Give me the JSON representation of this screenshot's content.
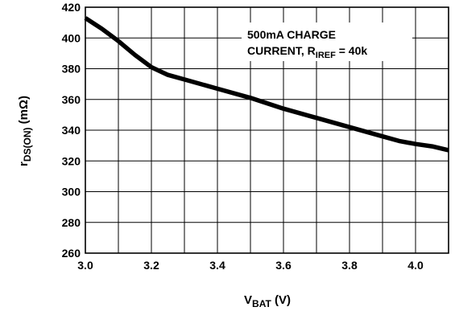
{
  "chart_data": {
    "type": "line",
    "xlabel": {
      "main": "V",
      "sub": "BAT",
      "tail": " (V)"
    },
    "ylabel": {
      "main": "r",
      "sub": "DS(ON)",
      "tail": " (mΩ)"
    },
    "xlim": [
      3.0,
      4.1
    ],
    "ylim": [
      260,
      420
    ],
    "x_ticks": [
      3.0,
      3.2,
      3.4,
      3.6,
      3.8,
      4.0
    ],
    "x_tick_labels": [
      "3.0",
      "3.2",
      "3.4",
      "3.6",
      "3.8",
      "4.0"
    ],
    "y_ticks": [
      260,
      280,
      300,
      320,
      340,
      360,
      380,
      400,
      420
    ],
    "y_tick_labels": [
      "260",
      "280",
      "300",
      "320",
      "340",
      "360",
      "380",
      "400",
      "420"
    ],
    "x_gridlines": [
      3.0,
      3.1,
      3.2,
      3.3,
      3.4,
      3.5,
      3.6,
      3.7,
      3.8,
      3.9,
      4.0,
      4.1
    ],
    "y_gridlines": [
      260,
      280,
      300,
      320,
      340,
      360,
      380,
      400,
      420
    ],
    "grid": true,
    "annotation": {
      "line1": "500mA CHARGE",
      "line2_main": "CURRENT, R",
      "line2_sub": "IREF",
      "line2_tail": " = 40k"
    },
    "series": [
      {
        "x": [
          3.0,
          3.05,
          3.1,
          3.15,
          3.2,
          3.25,
          3.3,
          3.4,
          3.5,
          3.6,
          3.7,
          3.8,
          3.9,
          3.95,
          4.0,
          4.05,
          4.1
        ],
        "values": [
          413,
          406,
          398,
          389,
          381,
          376,
          373,
          367,
          361,
          354,
          348,
          342,
          336,
          333,
          331,
          329.5,
          327
        ]
      }
    ]
  }
}
